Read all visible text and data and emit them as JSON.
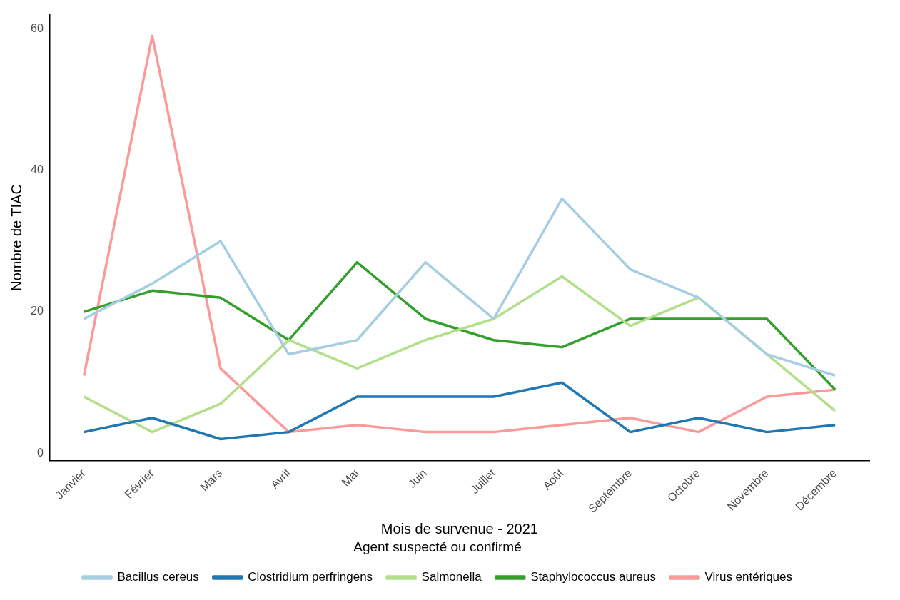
{
  "chart_data": {
    "type": "line",
    "xlabel": "Mois de survenue - 2021",
    "ylabel": "Nombre de TIAC",
    "legend_title": "Agent suspecté ou confirmé",
    "legend": "bottom",
    "grid": false,
    "marker": "none",
    "line_style": "solid",
    "categories": [
      "Janvier",
      "Février",
      "Mars",
      "Avril",
      "Mai",
      "Juin",
      "Juillet",
      "Août",
      "Septembre",
      "Octobre",
      "Novembre",
      "Décembre"
    ],
    "ylim": [
      -1,
      62
    ],
    "yticks": [
      0,
      20,
      40,
      60
    ],
    "series": [
      {
        "name": "Bacillus cereus",
        "color": "#a6cee3",
        "values": [
          19,
          24,
          30,
          14,
          16,
          27,
          19,
          36,
          26,
          22,
          14,
          11
        ]
      },
      {
        "name": "Clostridium perfringens",
        "color": "#1f78b4",
        "values": [
          3,
          5,
          2,
          3,
          8,
          8,
          8,
          10,
          3,
          5,
          3,
          4
        ]
      },
      {
        "name": "Salmonella",
        "color": "#b2df8a",
        "values": [
          8,
          3,
          7,
          16,
          12,
          16,
          19,
          25,
          18,
          22,
          14,
          6
        ]
      },
      {
        "name": "Staphylococcus aureus",
        "color": "#33a02c",
        "values": [
          20,
          23,
          22,
          16,
          27,
          19,
          16,
          15,
          19,
          19,
          19,
          9
        ]
      },
      {
        "name": "Virus entériques",
        "color": "#fb9a99",
        "values": [
          11,
          59,
          12,
          3,
          4,
          3,
          3,
          4,
          5,
          3,
          8,
          9
        ]
      }
    ]
  }
}
